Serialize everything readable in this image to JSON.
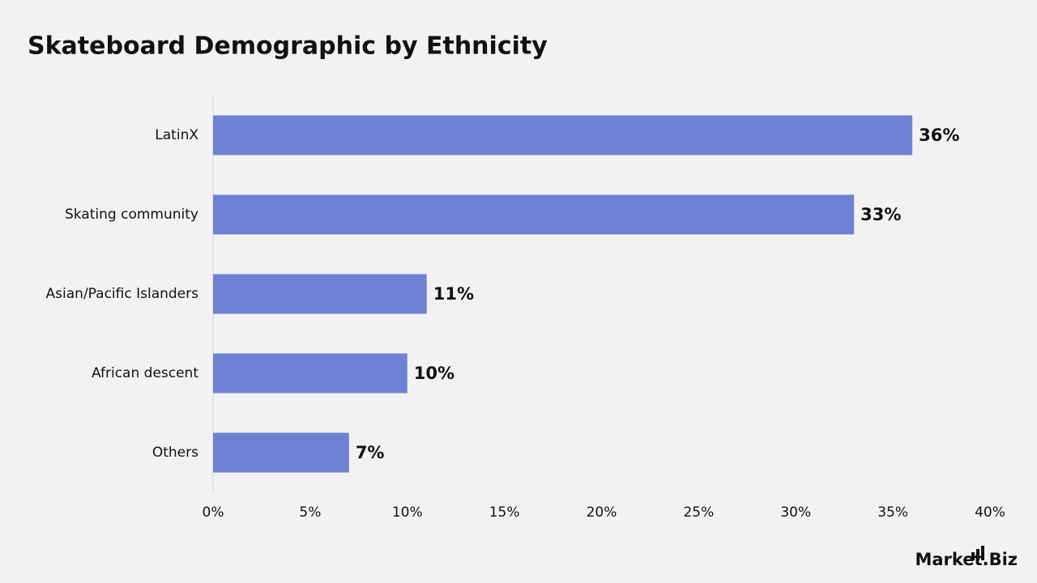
{
  "chart_data": {
    "type": "bar",
    "orientation": "horizontal",
    "title": "Skateboard Demographic by Ethnicity",
    "categories": [
      "LatinX",
      "Skating community",
      "Asian/Pacific Islanders",
      "African descent",
      "Others"
    ],
    "values": [
      36,
      33,
      11,
      10,
      7
    ],
    "value_labels": [
      "36%",
      "33%",
      "11%",
      "10%",
      "7%"
    ],
    "color": "#6e82d4",
    "xlim": [
      0,
      40
    ],
    "xticks": [
      {
        "value": 0,
        "label": "0%"
      },
      {
        "value": 5,
        "label": "5%"
      },
      {
        "value": 10,
        "label": "10%"
      },
      {
        "value": 15,
        "label": "15%"
      },
      {
        "value": 20,
        "label": "20%"
      },
      {
        "value": 25,
        "label": "25%"
      },
      {
        "value": 30,
        "label": "30%"
      },
      {
        "value": 35,
        "label": "35%"
      },
      {
        "value": 40,
        "label": "40%"
      }
    ],
    "grid": false
  },
  "brand": "Market.Biz"
}
